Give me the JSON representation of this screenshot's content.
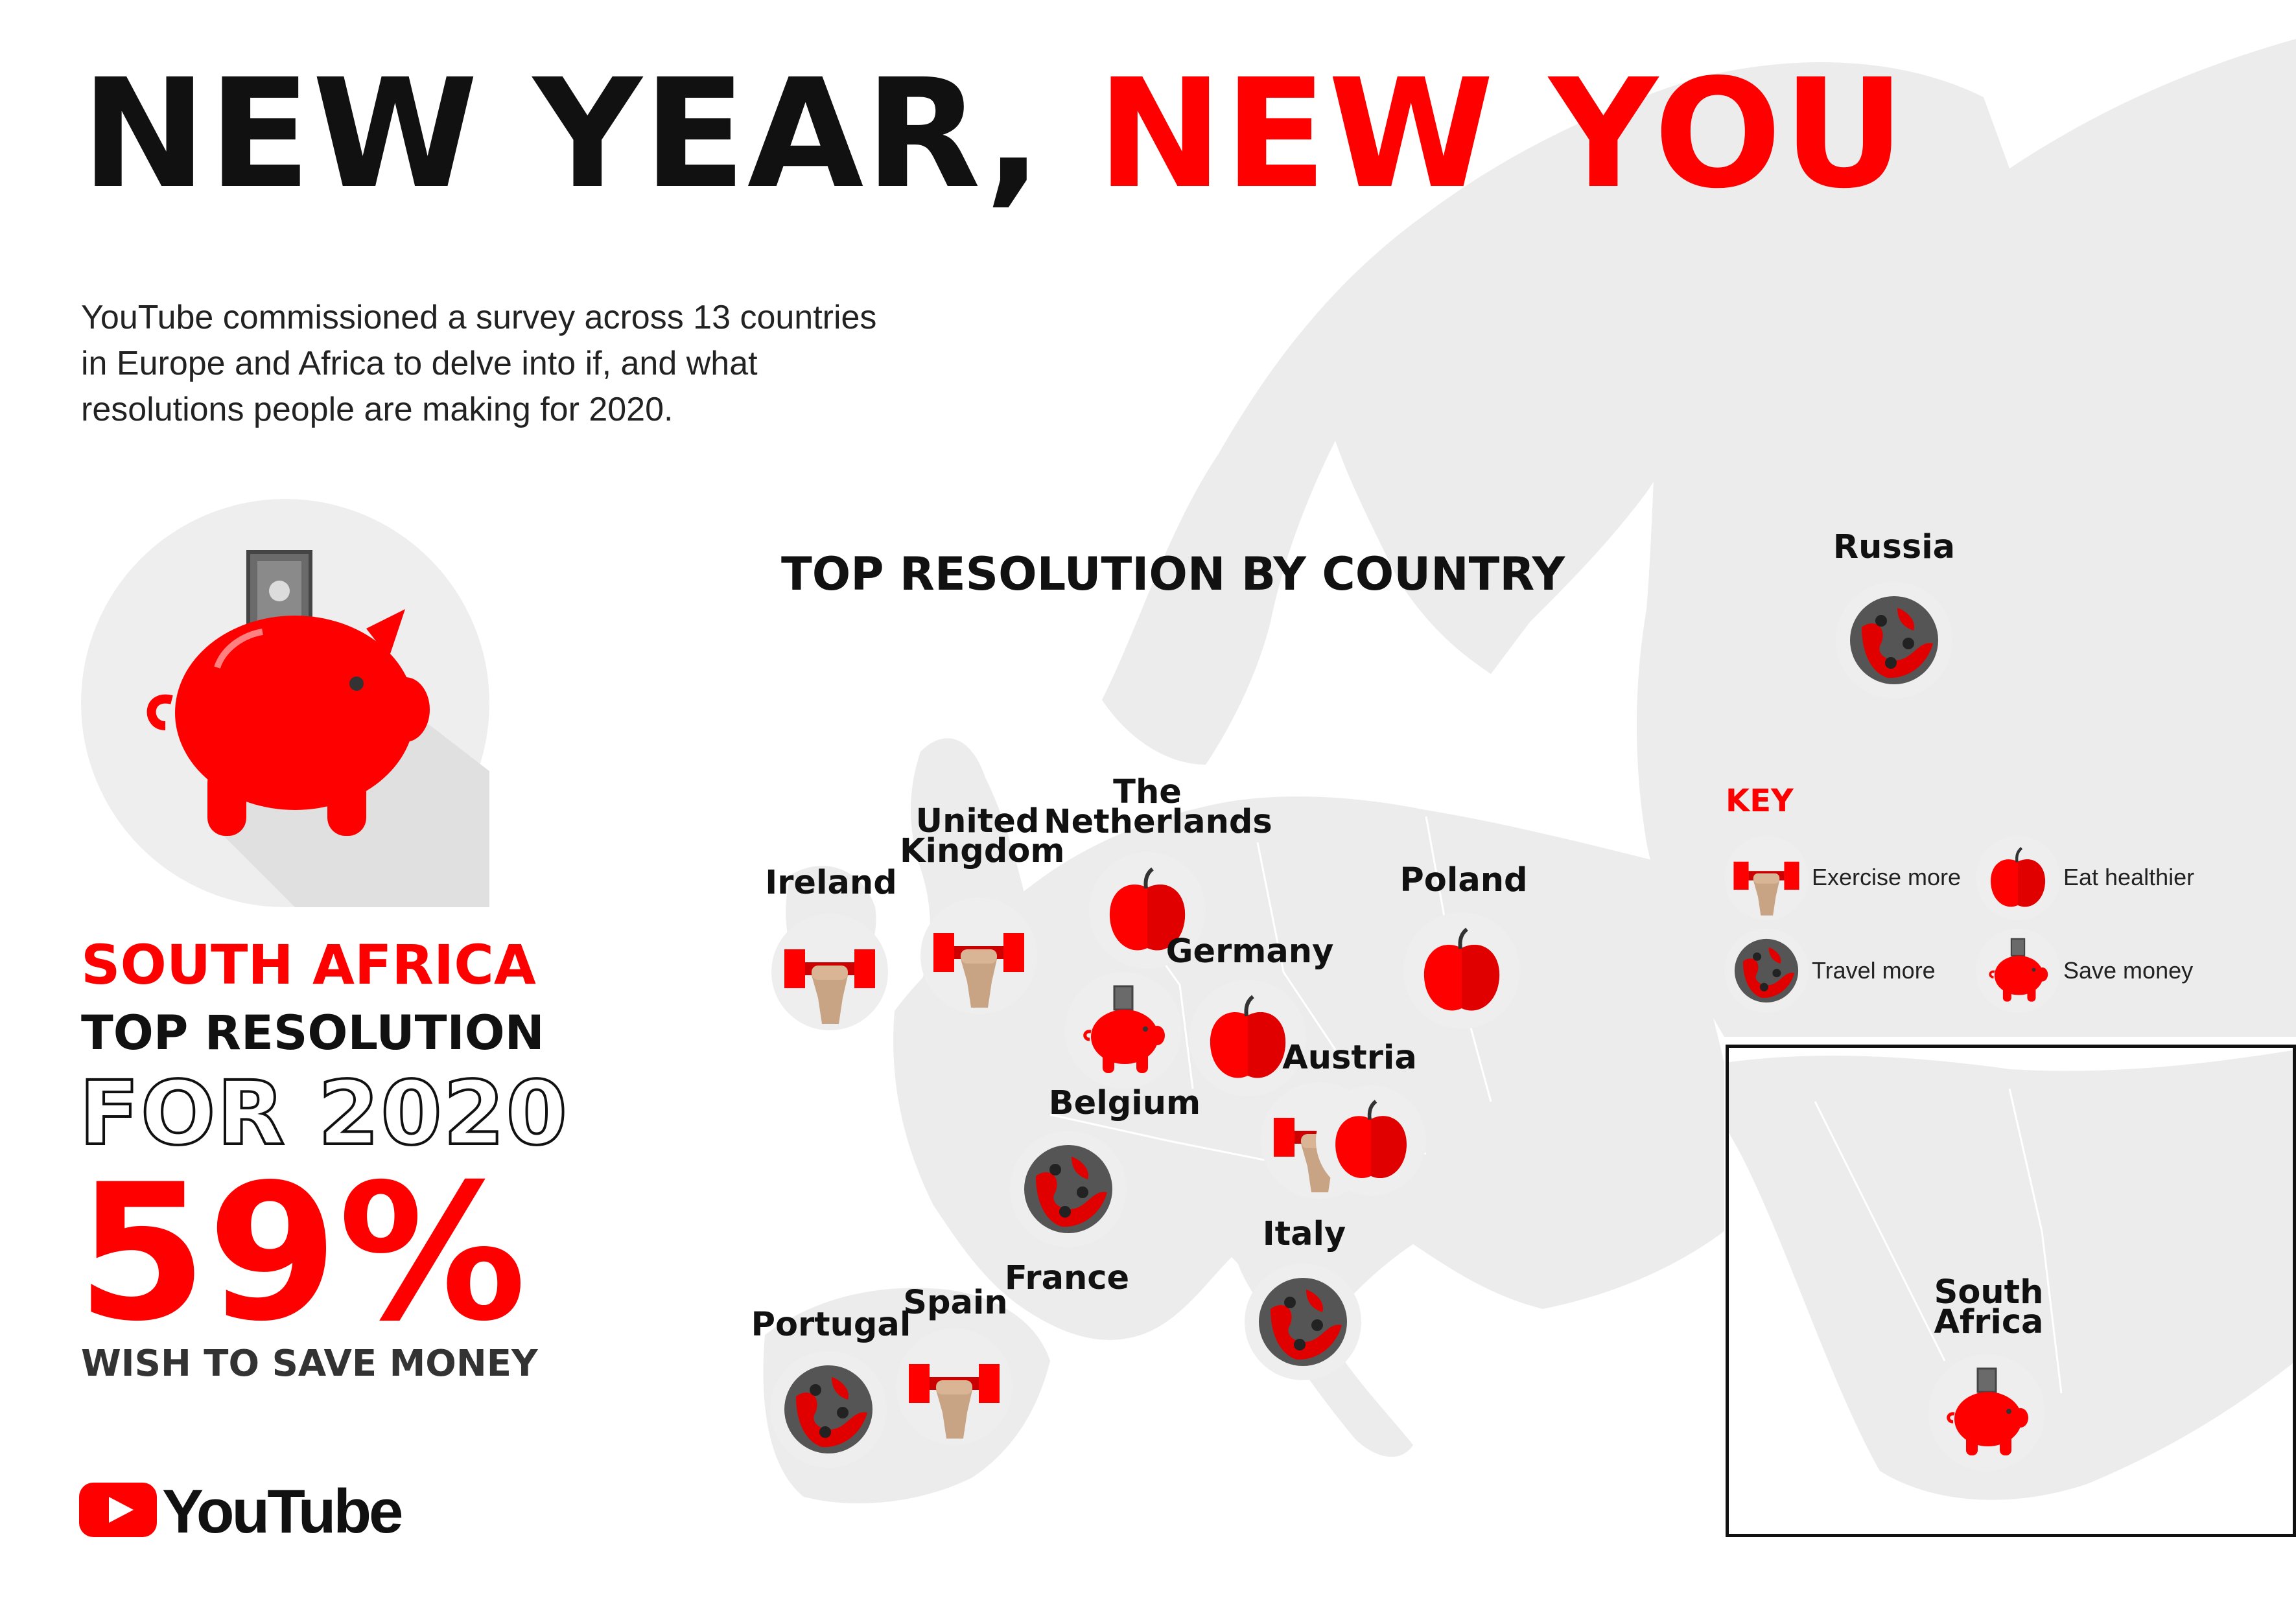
{
  "header": {
    "title_part1": "NEW YEAR,",
    "title_part2": "NEW YOU",
    "accent_color": "#ff0000"
  },
  "intro": {
    "lines": [
      "YouTube commissioned a survey across 13 countries",
      "in Europe and Africa to delve into if, and what",
      "resolutions people are making for 2020."
    ]
  },
  "feature": {
    "icon": "piggy-bank-icon",
    "country": "SOUTH AFRICA",
    "top_resolution": "TOP RESOLUTION",
    "for_year": "FOR 2020",
    "percent": "59%",
    "wish": "WISH TO SAVE MONEY"
  },
  "map": {
    "title": "TOP RESOLUTION BY COUNTRY",
    "countries": [
      {
        "name": "Russia",
        "resolution": "Travel more",
        "icon": "globe-icon"
      },
      {
        "name": "Ireland",
        "resolution": "Exercise more",
        "icon": "dumbbell-icon"
      },
      {
        "name": "United Kingdom",
        "resolution": "Exercise more",
        "icon": "dumbbell-icon"
      },
      {
        "name": "The Netherlands",
        "resolution": "Eat healthier",
        "icon": "apple-icon"
      },
      {
        "name": "Germany",
        "resolution": "Eat healthier",
        "icon": "apple-icon"
      },
      {
        "name": "Poland",
        "resolution": "Eat healthier",
        "icon": "apple-icon"
      },
      {
        "name": "Belgium",
        "resolution": "Save money",
        "icon": "piggy-bank-icon"
      },
      {
        "name": "Austria",
        "resolution": "Exercise more / Eat healthier",
        "icon": "dumbbell-apple-icon"
      },
      {
        "name": "France",
        "resolution": "Travel more",
        "icon": "globe-icon"
      },
      {
        "name": "Italy",
        "resolution": "Travel more",
        "icon": "globe-icon"
      },
      {
        "name": "Portugal",
        "resolution": "Travel more",
        "icon": "globe-icon"
      },
      {
        "name": "Spain",
        "resolution": "Exercise more",
        "icon": "dumbbell-icon"
      },
      {
        "name": "South Africa",
        "resolution": "Save money",
        "icon": "piggy-bank-icon"
      }
    ]
  },
  "key": {
    "title": "KEY",
    "items": [
      {
        "label": "Exercise more",
        "icon": "dumbbell-icon"
      },
      {
        "label": "Eat healthier",
        "icon": "apple-icon"
      },
      {
        "label": "Travel more",
        "icon": "globe-icon"
      },
      {
        "label": "Save money",
        "icon": "piggy-bank-icon"
      }
    ]
  },
  "brand": {
    "logo_text": "YouTube",
    "logo_icon": "youtube-play-icon"
  }
}
